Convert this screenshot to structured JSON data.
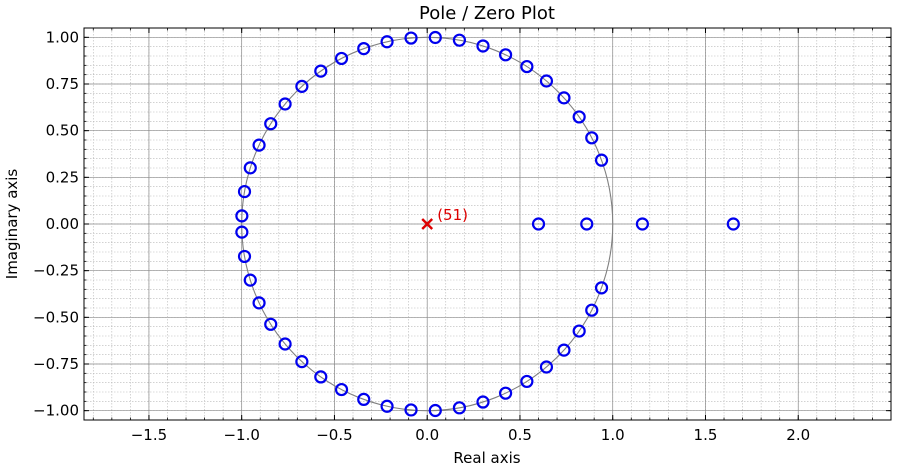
{
  "chart_data": {
    "type": "scatter",
    "title": "Pole / Zero Plot",
    "xlabel": "Real axis",
    "ylabel": "Imaginary axis",
    "xlim": [
      -1.85,
      2.5
    ],
    "ylim": [
      -1.05,
      1.05
    ],
    "xticks": [
      -1.5,
      -1.0,
      -0.5,
      0.0,
      0.5,
      1.0,
      1.5,
      2.0
    ],
    "xtick_labels": [
      "−1.5",
      "−1.0",
      "−0.5",
      "0.0",
      "0.5",
      "1.0",
      "1.5",
      "2.0"
    ],
    "yticks": [
      -1.0,
      -0.75,
      -0.5,
      -0.25,
      0.0,
      0.25,
      0.5,
      0.75,
      1.0
    ],
    "ytick_labels": [
      "−1.00",
      "−0.75",
      "−0.50",
      "−0.25",
      "0.00",
      "0.25",
      "0.50",
      "0.75",
      "1.00"
    ],
    "grid": {
      "major": true,
      "minor": true
    },
    "unit_circle": true,
    "zero_color": "#0000ee",
    "pole_color": "#dd0000",
    "zeros": {
      "unit_circle_angles_deg": [
        20,
        27.5,
        35,
        42.5,
        50,
        57.5,
        65,
        72.5,
        80,
        87.5,
        95,
        102.5,
        110,
        117.5,
        125,
        132.5,
        140,
        147.5,
        155,
        162.5,
        170,
        177.5
      ],
      "real": [
        0.6,
        0.86,
        1.16,
        1.65
      ]
    },
    "poles": [
      {
        "x": 0.0,
        "y": 0.0,
        "multiplicity_label": "(51)"
      }
    ]
  }
}
